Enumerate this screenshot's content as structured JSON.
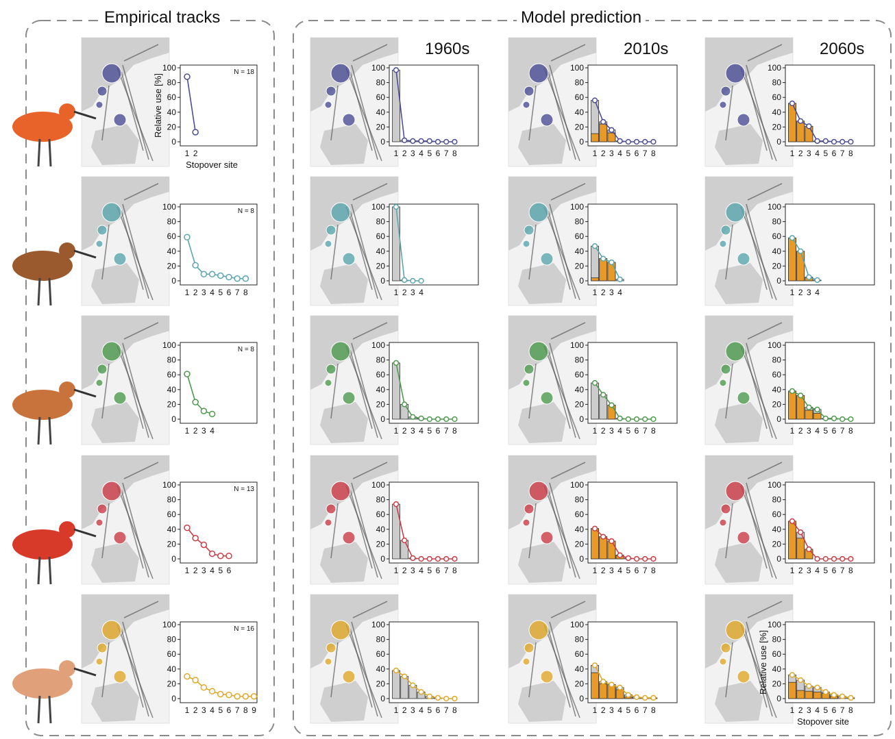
{
  "panels": {
    "empirical_title": "Empirical tracks",
    "model_title": "Model prediction",
    "decades": [
      "1960s",
      "2010s",
      "2060s"
    ]
  },
  "axis_labels": {
    "y": "Relative use [%]",
    "x": "Stopover site"
  },
  "species": [
    {
      "color": "#4b4d96",
      "bird_color": "#e8632a"
    },
    {
      "color": "#5aa6ad",
      "bird_color": "#9b5a2e"
    },
    {
      "color": "#4e9a4e",
      "bird_color": "#c9733c"
    },
    {
      "color": "#cc3c46",
      "bird_color": "#d83a2a"
    },
    {
      "color": "#e0a829",
      "bird_color": "#e0a07a"
    }
  ],
  "chart_data": [
    {
      "type": "line",
      "row": 1,
      "panel": "Empirical tracks",
      "n_label": "N = 18",
      "categories": [
        "1",
        "2"
      ],
      "values": [
        88,
        13
      ],
      "ylim": [
        0,
        100
      ],
      "yticks": [
        0,
        20,
        40,
        60,
        80,
        100
      ]
    },
    {
      "type": "line",
      "row": 2,
      "panel": "Empirical tracks",
      "n_label": "N = 8",
      "categories": [
        "1",
        "2",
        "3",
        "4",
        "5",
        "6",
        "7",
        "8"
      ],
      "values": [
        59,
        21,
        9,
        9,
        7,
        5,
        3,
        3
      ],
      "ylim": [
        0,
        100
      ],
      "yticks": [
        0,
        20,
        40,
        60,
        80,
        100
      ]
    },
    {
      "type": "line",
      "row": 3,
      "panel": "Empirical tracks",
      "n_label": "N = 8",
      "categories": [
        "1",
        "2",
        "3",
        "4"
      ],
      "values": [
        61,
        23,
        11,
        7
      ],
      "ylim": [
        0,
        100
      ],
      "yticks": [
        0,
        20,
        40,
        60,
        80,
        100
      ]
    },
    {
      "type": "line",
      "row": 4,
      "panel": "Empirical tracks",
      "n_label": "N = 13",
      "categories": [
        "1",
        "2",
        "3",
        "4",
        "5",
        "6"
      ],
      "values": [
        42,
        28,
        19,
        7,
        4,
        4
      ],
      "ylim": [
        0,
        100
      ],
      "yticks": [
        0,
        20,
        40,
        60,
        80,
        100
      ]
    },
    {
      "type": "line",
      "row": 5,
      "panel": "Empirical tracks",
      "n_label": "N = 16",
      "categories": [
        "1",
        "2",
        "3",
        "4",
        "5",
        "6",
        "7",
        "8",
        "9"
      ],
      "values": [
        30,
        25,
        15,
        10,
        6,
        5,
        3,
        3,
        3
      ],
      "ylim": [
        0,
        100
      ],
      "yticks": [
        0,
        20,
        40,
        60,
        80,
        100
      ]
    },
    {
      "type": "bar",
      "row": 1,
      "decade": "1960s",
      "categories": [
        "1",
        "2",
        "3",
        "4",
        "5",
        "6",
        "7",
        "8"
      ],
      "values": [
        97,
        2,
        1,
        1,
        1,
        0,
        0,
        0
      ],
      "ylim": [
        0,
        100
      ],
      "yticks": [
        0,
        20,
        40,
        60,
        80,
        100
      ]
    },
    {
      "type": "bar",
      "row": 1,
      "decade": "2010s",
      "categories": [
        "1",
        "2",
        "3",
        "4",
        "5",
        "6",
        "7",
        "8"
      ],
      "values": [
        56,
        27,
        16,
        1,
        0,
        0,
        0,
        0
      ],
      "highlight": [
        11,
        24,
        12,
        0,
        0,
        0,
        0,
        0
      ],
      "ylim": [
        0,
        100
      ],
      "yticks": [
        0,
        20,
        40,
        60,
        80,
        100
      ]
    },
    {
      "type": "bar",
      "row": 1,
      "decade": "2060s",
      "categories": [
        "1",
        "2",
        "3",
        "4",
        "5",
        "6",
        "7",
        "8"
      ],
      "values": [
        52,
        28,
        21,
        1,
        1,
        0,
        0,
        0
      ],
      "highlight": [
        52,
        28,
        21,
        0,
        0,
        0,
        0,
        0
      ],
      "ylim": [
        0,
        100
      ],
      "yticks": [
        0,
        20,
        40,
        60,
        80,
        100
      ]
    },
    {
      "type": "bar",
      "row": 2,
      "decade": "1960s",
      "categories": [
        "1",
        "2",
        "3",
        "4"
      ],
      "values": [
        100,
        1,
        0,
        0
      ],
      "ylim": [
        0,
        100
      ],
      "yticks": [
        0,
        20,
        40,
        60,
        80,
        100
      ]
    },
    {
      "type": "bar",
      "row": 2,
      "decade": "2010s",
      "categories": [
        "1",
        "2",
        "3",
        "4"
      ],
      "values": [
        47,
        30,
        25,
        2
      ],
      "highlight": [
        4,
        30,
        25,
        0
      ],
      "ylim": [
        0,
        100
      ],
      "yticks": [
        0,
        20,
        40,
        60,
        80,
        100
      ]
    },
    {
      "type": "bar",
      "row": 2,
      "decade": "2060s",
      "categories": [
        "1",
        "2",
        "3",
        "4"
      ],
      "values": [
        58,
        40,
        5,
        1
      ],
      "highlight": [
        58,
        40,
        4,
        0
      ],
      "ylim": [
        0,
        100
      ],
      "yticks": [
        0,
        20,
        40,
        60,
        80,
        100
      ]
    },
    {
      "type": "bar",
      "row": 3,
      "decade": "1960s",
      "categories": [
        "1",
        "2",
        "3",
        "4",
        "5",
        "6",
        "7",
        "8"
      ],
      "values": [
        76,
        20,
        3,
        1,
        0,
        0,
        0,
        0
      ],
      "ylim": [
        0,
        100
      ],
      "yticks": [
        0,
        20,
        40,
        60,
        80,
        100
      ]
    },
    {
      "type": "bar",
      "row": 3,
      "decade": "2010s",
      "categories": [
        "1",
        "2",
        "3",
        "4",
        "5",
        "6",
        "7",
        "8"
      ],
      "values": [
        49,
        33,
        19,
        1,
        0,
        0,
        0,
        0
      ],
      "highlight": [
        0,
        0,
        19,
        0,
        0,
        0,
        0,
        0
      ],
      "ylim": [
        0,
        100
      ],
      "yticks": [
        0,
        20,
        40,
        60,
        80,
        100
      ]
    },
    {
      "type": "bar",
      "row": 3,
      "decade": "2060s",
      "categories": [
        "1",
        "2",
        "3",
        "4",
        "5",
        "6",
        "7",
        "8"
      ],
      "values": [
        38,
        32,
        16,
        13,
        1,
        1,
        0,
        0
      ],
      "highlight": [
        38,
        32,
        12,
        8,
        0,
        0,
        0,
        0
      ],
      "ylim": [
        0,
        100
      ],
      "yticks": [
        0,
        20,
        40,
        60,
        80,
        100
      ]
    },
    {
      "type": "bar",
      "row": 4,
      "decade": "1960s",
      "categories": [
        "1",
        "2",
        "3",
        "4",
        "5",
        "6",
        "7",
        "8"
      ],
      "values": [
        74,
        25,
        1,
        0,
        0,
        0,
        0,
        0
      ],
      "ylim": [
        0,
        100
      ],
      "yticks": [
        0,
        20,
        40,
        60,
        80,
        100
      ]
    },
    {
      "type": "bar",
      "row": 4,
      "decade": "2010s",
      "categories": [
        "1",
        "2",
        "3",
        "4",
        "5",
        "6",
        "7",
        "8"
      ],
      "values": [
        41,
        30,
        24,
        5,
        1,
        0,
        0,
        0
      ],
      "highlight": [
        41,
        30,
        24,
        5,
        0,
        0,
        0,
        0
      ],
      "ylim": [
        0,
        100
      ],
      "yticks": [
        0,
        20,
        40,
        60,
        80,
        100
      ]
    },
    {
      "type": "bar",
      "row": 4,
      "decade": "2060s",
      "categories": [
        "1",
        "2",
        "3",
        "4",
        "5",
        "6",
        "7",
        "8"
      ],
      "values": [
        51,
        36,
        13,
        0,
        0,
        0,
        0,
        0
      ],
      "highlight": [
        51,
        28,
        13,
        0,
        0,
        0,
        0,
        0
      ],
      "ylim": [
        0,
        100
      ],
      "yticks": [
        0,
        20,
        40,
        60,
        80,
        100
      ]
    },
    {
      "type": "bar",
      "row": 5,
      "decade": "1960s",
      "categories": [
        "1",
        "2",
        "3",
        "4",
        "5",
        "6",
        "7",
        "8"
      ],
      "values": [
        38,
        30,
        18,
        9,
        3,
        1,
        0,
        0
      ],
      "ylim": [
        0,
        100
      ],
      "yticks": [
        0,
        20,
        40,
        60,
        80,
        100
      ]
    },
    {
      "type": "bar",
      "row": 5,
      "decade": "2010s",
      "categories": [
        "1",
        "2",
        "3",
        "4",
        "5",
        "6",
        "7",
        "8"
      ],
      "values": [
        45,
        23,
        19,
        15,
        5,
        2,
        1,
        1
      ],
      "highlight": [
        35,
        20,
        19,
        12,
        2,
        0,
        0,
        0
      ],
      "ylim": [
        0,
        100
      ],
      "yticks": [
        0,
        20,
        40,
        60,
        80,
        100
      ]
    },
    {
      "type": "bar",
      "row": 5,
      "decade": "2060s",
      "categories": [
        "1",
        "2",
        "3",
        "4",
        "5",
        "6",
        "7",
        "8"
      ],
      "values": [
        32,
        25,
        17,
        15,
        9,
        5,
        3,
        1
      ],
      "highlight": [
        22,
        11,
        10,
        9,
        7,
        3,
        0,
        0
      ],
      "ylim": [
        0,
        100
      ],
      "yticks": [
        0,
        20,
        40,
        60,
        80,
        100
      ]
    }
  ]
}
